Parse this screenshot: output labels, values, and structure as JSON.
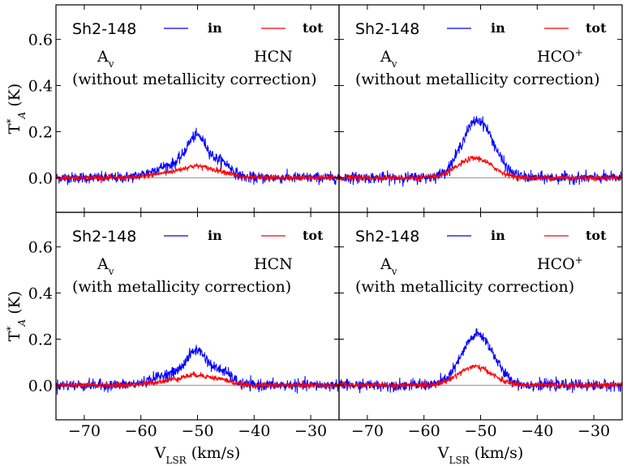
{
  "chart_data": {
    "type": "line",
    "layout": "2x2 grid, shared x and y axes",
    "xlabel": "V",
    "xlabel_sub": "LSR",
    "xlabel_unit": " (km/s)",
    "ylabel": "T",
    "ylabel_sup": "*",
    "ylabel_sub": "A",
    "ylabel_unit": " (K)",
    "xlim": [
      -75,
      -25
    ],
    "ylim": [
      -0.15,
      0.75
    ],
    "xticks": [
      -70,
      -60,
      -50,
      -40,
      -30
    ],
    "xtick_labels": [
      "−70",
      "−60",
      "−50",
      "−40",
      "−30"
    ],
    "yticks": [
      0.0,
      0.2,
      0.4,
      0.6
    ],
    "ytick_labels": [
      "0.0",
      "0.2",
      "0.4",
      "0.6"
    ],
    "zero_line": true,
    "legend": [
      {
        "label": "in",
        "color": "#0000ff"
      },
      {
        "label": "tot",
        "color": "#ff0000"
      }
    ],
    "noise_rms": {
      "in": 0.012,
      "tot": 0.006
    },
    "panels": [
      {
        "source": "Sh2-148",
        "av": "A",
        "av_sub": "v",
        "molecule": "HCN",
        "molecule_sup": "",
        "correction": "(without metallicity correction)",
        "series": [
          {
            "name": "in",
            "color": "#0000ff",
            "components": [
              {
                "center": -50.0,
                "amp": 0.17,
                "sigma": 1.9
              },
              {
                "center": -45.5,
                "amp": 0.06,
                "sigma": 1.6
              },
              {
                "center": -55.0,
                "amp": 0.05,
                "sigma": 3.0
              }
            ]
          },
          {
            "name": "tot",
            "color": "#ff0000",
            "components": [
              {
                "center": -50.0,
                "amp": 0.045,
                "sigma": 2.4
              },
              {
                "center": -45.5,
                "amp": 0.02,
                "sigma": 1.8
              },
              {
                "center": -55.0,
                "amp": 0.02,
                "sigma": 3.0
              }
            ]
          }
        ]
      },
      {
        "source": "Sh2-148",
        "av": "A",
        "av_sub": "v",
        "molecule": "HCO",
        "molecule_sup": "+",
        "correction": "(without metallicity correction)",
        "series": [
          {
            "name": "in",
            "color": "#0000ff",
            "components": [
              {
                "center": -50.5,
                "amp": 0.25,
                "sigma": 2.8
              }
            ]
          },
          {
            "name": "tot",
            "color": "#ff0000",
            "components": [
              {
                "center": -51.0,
                "amp": 0.085,
                "sigma": 3.0
              }
            ]
          }
        ]
      },
      {
        "source": "Sh2-148",
        "av": "A",
        "av_sub": "v",
        "molecule": "HCN",
        "molecule_sup": "",
        "correction": "(with metallicity correction)",
        "series": [
          {
            "name": "in",
            "color": "#0000ff",
            "components": [
              {
                "center": -50.0,
                "amp": 0.14,
                "sigma": 1.9
              },
              {
                "center": -45.5,
                "amp": 0.055,
                "sigma": 1.6
              },
              {
                "center": -55.0,
                "amp": 0.045,
                "sigma": 3.0
              }
            ]
          },
          {
            "name": "tot",
            "color": "#ff0000",
            "components": [
              {
                "center": -50.0,
                "amp": 0.04,
                "sigma": 2.4
              },
              {
                "center": -45.5,
                "amp": 0.018,
                "sigma": 1.8
              },
              {
                "center": -55.0,
                "amp": 0.018,
                "sigma": 3.0
              }
            ]
          }
        ]
      },
      {
        "source": "Sh2-148",
        "av": "A",
        "av_sub": "v",
        "molecule": "HCO",
        "molecule_sup": "+",
        "correction": "(with metallicity correction)",
        "series": [
          {
            "name": "in",
            "color": "#0000ff",
            "components": [
              {
                "center": -50.5,
                "amp": 0.22,
                "sigma": 2.8
              }
            ]
          },
          {
            "name": "tot",
            "color": "#ff0000",
            "components": [
              {
                "center": -51.0,
                "amp": 0.08,
                "sigma": 3.0
              }
            ]
          }
        ]
      }
    ]
  }
}
